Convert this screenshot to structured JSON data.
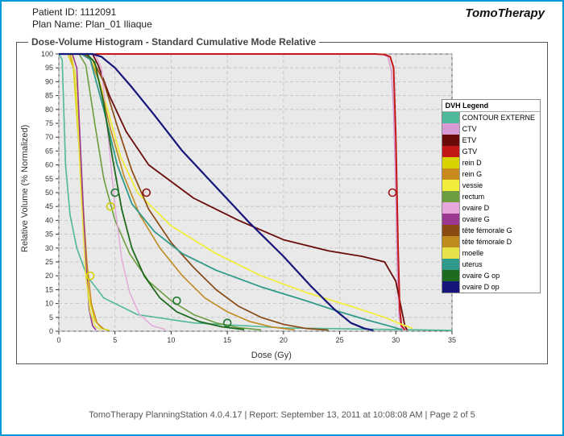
{
  "header": {
    "patient_label": "Patient ID:",
    "patient_value": "1112091",
    "plan_label": "Plan Name:",
    "plan_value": "Plan_01 Iliaque"
  },
  "logo": "TomoTherapy",
  "footer": "TomoTherapy PlanningStation 4.0.4.17 | Report: September 13, 2011 at 10:08:08 AM | Page 2 of 5",
  "chart": {
    "title": "Dose-Volume Histogram - Standard Cumulative Mode Relative",
    "xlabel": "Dose (Gy)",
    "ylabel": "Relative Volume (% Normalized)",
    "xlim": [
      0,
      35
    ],
    "ylim": [
      0,
      100
    ],
    "xtick_step": 5,
    "ytick_step": 5,
    "background_color": "#e9e9e9",
    "grid_color": "#bfbfbf",
    "axis_fontsize": 9,
    "markers": [
      {
        "x": 5.0,
        "y": 50,
        "color": "#1e7a2f"
      },
      {
        "x": 7.8,
        "y": 50,
        "color": "#8a1010"
      },
      {
        "x": 29.7,
        "y": 50,
        "color": "#a01818"
      },
      {
        "x": 2.8,
        "y": 20,
        "color": "#d6d600"
      },
      {
        "x": 4.6,
        "y": 45,
        "color": "#d0d000"
      },
      {
        "x": 10.5,
        "y": 11,
        "color": "#1e7a2f"
      },
      {
        "x": 15.0,
        "y": 3,
        "color": "#1e7a2f"
      }
    ],
    "series": [
      {
        "name": "CONTOUR EXTERNE",
        "color": "#4fb79a",
        "width": 1.6,
        "points": [
          [
            0,
            100
          ],
          [
            0.3,
            98
          ],
          [
            0.6,
            60
          ],
          [
            1.0,
            42
          ],
          [
            1.6,
            30
          ],
          [
            2.5,
            20
          ],
          [
            4,
            12
          ],
          [
            7,
            6
          ],
          [
            12,
            3
          ],
          [
            20,
            1.2
          ],
          [
            30,
            0.6
          ],
          [
            35,
            0.3
          ]
        ]
      },
      {
        "name": "CTV",
        "color": "#d89ad4",
        "width": 1.6,
        "points": [
          [
            0,
            100
          ],
          [
            28,
            100
          ],
          [
            28.8,
            99.8
          ],
          [
            29.3,
            99
          ],
          [
            29.6,
            94
          ],
          [
            29.8,
            80
          ],
          [
            30,
            50
          ],
          [
            30.15,
            20
          ],
          [
            30.3,
            5
          ],
          [
            30.5,
            1
          ],
          [
            31,
            0.3
          ]
        ]
      },
      {
        "name": "ETV",
        "color": "#6a0b0b",
        "width": 1.8,
        "points": [
          [
            0,
            100
          ],
          [
            3,
            100
          ],
          [
            3.5,
            96
          ],
          [
            4.5,
            85
          ],
          [
            6,
            72
          ],
          [
            8,
            60
          ],
          [
            12,
            48
          ],
          [
            16,
            40
          ],
          [
            20,
            33
          ],
          [
            24,
            29
          ],
          [
            27,
            27
          ],
          [
            29,
            25
          ],
          [
            30,
            18
          ],
          [
            30.5,
            8
          ],
          [
            30.8,
            2
          ],
          [
            31,
            0.5
          ]
        ]
      },
      {
        "name": "GTV",
        "color": "#c41818",
        "width": 2.0,
        "points": [
          [
            0,
            100
          ],
          [
            28.2,
            100
          ],
          [
            29.0,
            99.8
          ],
          [
            29.5,
            99
          ],
          [
            29.8,
            95
          ],
          [
            30.0,
            70
          ],
          [
            30.2,
            30
          ],
          [
            30.35,
            8
          ],
          [
            30.5,
            2
          ],
          [
            30.8,
            0.5
          ]
        ]
      },
      {
        "name": "rein D",
        "color": "#d8d200",
        "width": 1.5,
        "points": [
          [
            0,
            100
          ],
          [
            0.8,
            100
          ],
          [
            1.3,
            95
          ],
          [
            1.9,
            60
          ],
          [
            2.3,
            30
          ],
          [
            2.7,
            12
          ],
          [
            3.2,
            4
          ],
          [
            3.8,
            1
          ],
          [
            4.5,
            0.3
          ]
        ]
      },
      {
        "name": "rein G",
        "color": "#c88a1e",
        "width": 1.5,
        "points": [
          [
            0,
            100
          ],
          [
            1.0,
            100
          ],
          [
            1.5,
            92
          ],
          [
            2.0,
            55
          ],
          [
            2.5,
            25
          ],
          [
            2.9,
            10
          ],
          [
            3.4,
            3
          ],
          [
            4.0,
            0.8
          ]
        ]
      },
      {
        "name": "vessie",
        "color": "#f2ec3a",
        "width": 1.8,
        "points": [
          [
            0,
            100
          ],
          [
            2.2,
            100
          ],
          [
            3.0,
            98
          ],
          [
            4.0,
            85
          ],
          [
            5.5,
            63
          ],
          [
            7,
            50
          ],
          [
            10,
            38
          ],
          [
            14,
            28
          ],
          [
            18,
            20
          ],
          [
            22,
            14
          ],
          [
            26,
            9
          ],
          [
            29,
            5
          ],
          [
            30.5,
            2.5
          ],
          [
            31.5,
            1
          ]
        ]
      },
      {
        "name": "rectum",
        "color": "#6b9c3e",
        "width": 1.6,
        "points": [
          [
            0,
            100
          ],
          [
            1.8,
            100
          ],
          [
            2.4,
            96
          ],
          [
            3.2,
            75
          ],
          [
            4.0,
            55
          ],
          [
            5.0,
            40
          ],
          [
            6.3,
            28
          ],
          [
            8,
            18
          ],
          [
            10,
            11
          ],
          [
            12,
            6
          ],
          [
            14,
            3
          ],
          [
            16,
            1.3
          ],
          [
            18,
            0.5
          ]
        ]
      },
      {
        "name": "ovaire D",
        "color": "#e6a8da",
        "width": 1.5,
        "points": [
          [
            0,
            100
          ],
          [
            3.2,
            100
          ],
          [
            3.8,
            95
          ],
          [
            4.4,
            70
          ],
          [
            5.0,
            45
          ],
          [
            5.6,
            26
          ],
          [
            6.3,
            14
          ],
          [
            7.2,
            6
          ],
          [
            8.3,
            2
          ],
          [
            9.5,
            0.6
          ]
        ]
      },
      {
        "name": "ovaire G",
        "color": "#9c3790",
        "width": 1.6,
        "points": [
          [
            0,
            100
          ],
          [
            1.2,
            100
          ],
          [
            1.6,
            95
          ],
          [
            2.0,
            60
          ],
          [
            2.4,
            25
          ],
          [
            2.7,
            8
          ],
          [
            3.0,
            2
          ],
          [
            3.3,
            0.5
          ]
        ]
      },
      {
        "name": "tête fémorale G",
        "color": "#8a4a12",
        "width": 1.7,
        "points": [
          [
            0,
            100
          ],
          [
            2.2,
            100
          ],
          [
            3.0,
            98
          ],
          [
            4.0,
            90
          ],
          [
            5.2,
            74
          ],
          [
            6.5,
            58
          ],
          [
            8,
            44
          ],
          [
            10,
            32
          ],
          [
            12,
            23
          ],
          [
            14,
            15
          ],
          [
            16,
            9
          ],
          [
            18,
            5
          ],
          [
            20,
            2.5
          ],
          [
            22,
            1
          ],
          [
            24,
            0.4
          ]
        ]
      },
      {
        "name": "tête fémorale D",
        "color": "#bf8a1e",
        "width": 1.6,
        "points": [
          [
            0,
            100
          ],
          [
            2.0,
            100
          ],
          [
            2.8,
            98
          ],
          [
            3.6,
            90
          ],
          [
            4.6,
            73
          ],
          [
            5.8,
            56
          ],
          [
            7.2,
            42
          ],
          [
            9,
            30
          ],
          [
            11,
            20
          ],
          [
            13,
            12
          ],
          [
            15,
            7
          ],
          [
            17,
            3.5
          ],
          [
            19,
            1.5
          ],
          [
            21,
            0.5
          ]
        ]
      },
      {
        "name": "moelle",
        "color": "#e6e24a",
        "width": 1.6,
        "points": [
          [
            0,
            100
          ],
          [
            1.1,
            100
          ],
          [
            1.5,
            92
          ],
          [
            2.0,
            48
          ],
          [
            2.4,
            20
          ],
          [
            2.8,
            7
          ],
          [
            3.2,
            2
          ],
          [
            3.7,
            0.5
          ]
        ]
      },
      {
        "name": "uterus",
        "color": "#2f9a8a",
        "width": 1.8,
        "points": [
          [
            0,
            100
          ],
          [
            2.0,
            100
          ],
          [
            2.8,
            98
          ],
          [
            4.0,
            80
          ],
          [
            5.2,
            60
          ],
          [
            6.5,
            46
          ],
          [
            8.5,
            36
          ],
          [
            11,
            28
          ],
          [
            14,
            22
          ],
          [
            18,
            16
          ],
          [
            22,
            11
          ],
          [
            25,
            7
          ],
          [
            27.5,
            4
          ],
          [
            29.5,
            1.8
          ],
          [
            30.5,
            0.6
          ]
        ]
      },
      {
        "name": "ovaire G op",
        "color": "#1e6a1e",
        "width": 1.8,
        "points": [
          [
            0,
            100
          ],
          [
            2.5,
            100
          ],
          [
            3.2,
            97
          ],
          [
            4.0,
            82
          ],
          [
            4.8,
            62
          ],
          [
            5.6,
            44
          ],
          [
            6.5,
            30
          ],
          [
            7.6,
            20
          ],
          [
            9,
            12
          ],
          [
            10.5,
            7
          ],
          [
            12.5,
            3.5
          ],
          [
            14.5,
            1.6
          ],
          [
            16.5,
            0.6
          ]
        ]
      },
      {
        "name": "ovaire D op",
        "color": "#15157a",
        "width": 2.2,
        "points": [
          [
            0,
            100
          ],
          [
            3.0,
            100
          ],
          [
            3.8,
            99
          ],
          [
            5.0,
            95
          ],
          [
            6.5,
            88
          ],
          [
            8.5,
            78
          ],
          [
            11,
            65
          ],
          [
            14,
            52
          ],
          [
            17,
            39
          ],
          [
            20,
            27
          ],
          [
            22.5,
            16
          ],
          [
            24.5,
            8
          ],
          [
            26,
            3
          ],
          [
            27.2,
            1
          ],
          [
            28,
            0.3
          ]
        ]
      }
    ],
    "legend": {
      "title": "DVH Legend",
      "items": [
        {
          "label": "CONTOUR EXTERNE",
          "color": "#4fb79a"
        },
        {
          "label": "CTV",
          "color": "#d89ad4"
        },
        {
          "label": "ETV",
          "color": "#6a0b0b"
        },
        {
          "label": "GTV",
          "color": "#c41818"
        },
        {
          "label": "rein D",
          "color": "#d8d200"
        },
        {
          "label": "rein G",
          "color": "#c88a1e"
        },
        {
          "label": "vessie",
          "color": "#f2ec3a"
        },
        {
          "label": "rectum",
          "color": "#6b9c3e"
        },
        {
          "label": "ovaire D",
          "color": "#e6a8da"
        },
        {
          "label": "ovaire G",
          "color": "#9c3790"
        },
        {
          "label": "tête fémorale G",
          "color": "#8a4a12"
        },
        {
          "label": "tête fémorale D",
          "color": "#bf8a1e"
        },
        {
          "label": "moelle",
          "color": "#e6e24a"
        },
        {
          "label": "uterus",
          "color": "#2f9a8a"
        },
        {
          "label": "ovaire G op",
          "color": "#1e6a1e"
        },
        {
          "label": "ovaire D op",
          "color": "#15157a"
        }
      ]
    }
  }
}
